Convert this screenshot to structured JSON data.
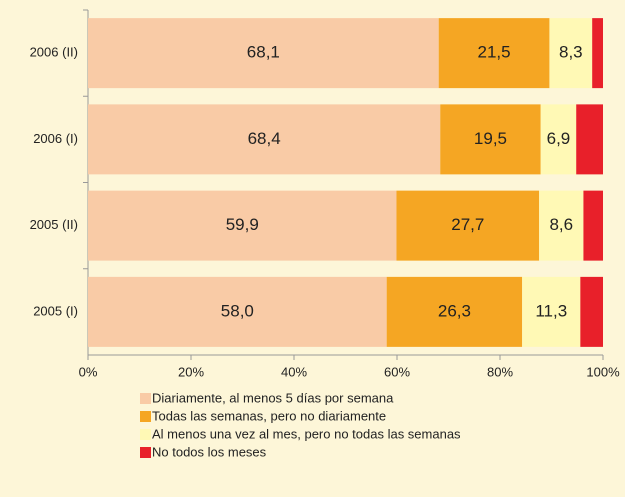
{
  "chart_data": {
    "type": "stacked-bar-horizontal",
    "categories": [
      "2006 (II)",
      "2006 (I)",
      "2005 (II)",
      "2005 (I)"
    ],
    "series": [
      {
        "name": "Diariamente, al menos 5 días por semana",
        "color": "#f9cba6",
        "values": [
          68.1,
          68.4,
          59.9,
          58.0
        ],
        "value_labels": [
          "68,1",
          "68,4",
          "59,9",
          "58,0"
        ]
      },
      {
        "name": "Todas las semanas, pero no diariamente",
        "color": "#f5a623",
        "values": [
          21.5,
          19.5,
          27.7,
          26.3
        ],
        "value_labels": [
          "21,5",
          "19,5",
          "27,7",
          "26,3"
        ]
      },
      {
        "name": "Al menos una vez al mes, pero no todas las semanas",
        "color": "#fff9b5",
        "values": [
          8.3,
          6.9,
          8.6,
          11.3
        ],
        "value_labels": [
          "8,3",
          "6,9",
          "8,6",
          "11,3"
        ]
      },
      {
        "name": "No todos los meses",
        "color": "#e8202a",
        "values": [
          2.1,
          5.2,
          3.8,
          4.4
        ]
      }
    ],
    "xlim": [
      0,
      100
    ],
    "xticks": [
      {
        "value": 0,
        "label": "0%"
      },
      {
        "value": 20,
        "label": "20%"
      },
      {
        "value": 40,
        "label": "40%"
      },
      {
        "value": 60,
        "label": "60%"
      },
      {
        "value": 80,
        "label": "80%"
      },
      {
        "value": 100,
        "label": "100%"
      }
    ]
  }
}
